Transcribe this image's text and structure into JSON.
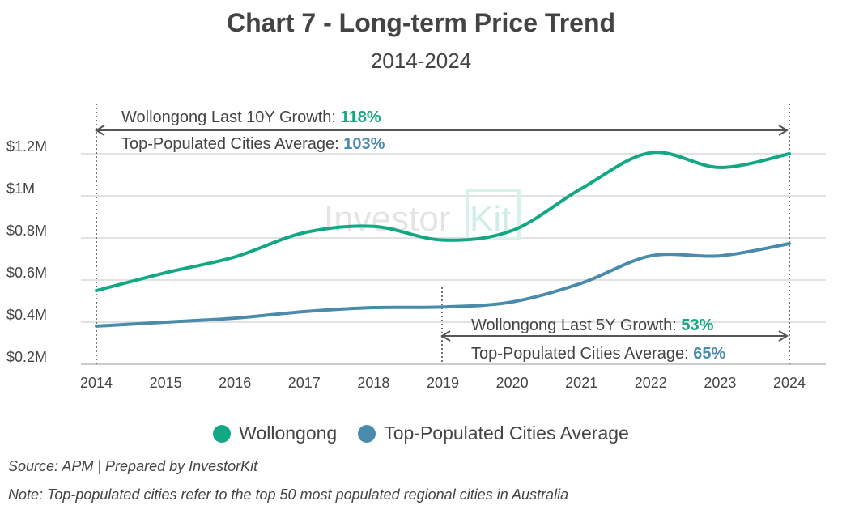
{
  "chart_data": {
    "type": "line",
    "title": "Chart 7 - Long-term Price Trend",
    "subtitle": "2014-2024",
    "x": [
      2014,
      2015,
      2016,
      2017,
      2018,
      2019,
      2020,
      2021,
      2022,
      2023,
      2024
    ],
    "x_tick_labels": [
      "2014",
      "2015",
      "2016",
      "2017",
      "2018",
      "2019",
      "2020",
      "2021",
      "2022",
      "2023",
      "2024"
    ],
    "y_tick_values": [
      0.2,
      0.4,
      0.6,
      0.8,
      1.0,
      1.2
    ],
    "y_tick_labels": [
      "$0.2M",
      "$0.4M",
      "$0.6M",
      "$0.8M",
      "$1M",
      "$1.2M"
    ],
    "ylim": [
      0.2,
      1.25
    ],
    "y_unit": "$M",
    "grid": true,
    "legend_position": "bottom",
    "series": [
      {
        "name": "Wollongong",
        "color": "#13a884",
        "values": [
          0.55,
          0.635,
          0.71,
          0.825,
          0.855,
          0.79,
          0.835,
          1.035,
          1.205,
          1.135,
          1.2
        ]
      },
      {
        "name": "Top-Populated Cities Average",
        "color": "#4a8bab",
        "values": [
          0.381,
          0.4,
          0.419,
          0.45,
          0.469,
          0.472,
          0.496,
          0.585,
          0.715,
          0.715,
          0.773
        ]
      }
    ],
    "annotations": {
      "ten_year": {
        "label_a": "Wollongong Last 10Y Growth: ",
        "value_a": "118%",
        "label_b": "Top-Populated Cities Average: ",
        "value_b": "103%",
        "from": 2014,
        "to": 2024
      },
      "five_year": {
        "label_a": "Wollongong Last 5Y Growth: ",
        "value_a": "53%",
        "label_b": "Top-Populated Cities Average: ",
        "value_b": "65%",
        "from": 2019,
        "to": 2024
      }
    },
    "watermark": "InvestorKit"
  },
  "footer": {
    "source": "Source: APM | Prepared by InvestorKit",
    "note": "Note: Top-populated cities refer to the top 50 most populated regional cities in Australia"
  }
}
